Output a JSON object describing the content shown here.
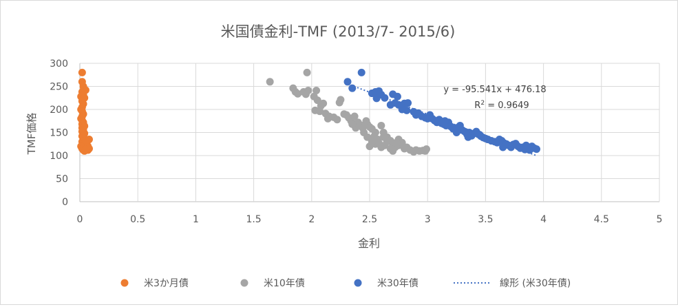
{
  "chart_data": {
    "type": "scatter",
    "title": "米国債金利-TMF (2013/7- 2015/6)",
    "xlabel": "金利",
    "ylabel": "TMF価格",
    "xlim": [
      0,
      5
    ],
    "ylim": [
      0,
      300
    ],
    "x_ticks": [
      "0",
      "0.5",
      "1",
      "1.5",
      "2",
      "2.5",
      "3",
      "3.5",
      "4",
      "4.5",
      "5"
    ],
    "y_ticks": [
      "0",
      "50",
      "100",
      "150",
      "200",
      "250",
      "300"
    ],
    "grid": true,
    "legend_position": "bottom",
    "series": [
      {
        "name": "米3か月債",
        "color": "#ED7D31",
        "points": [
          [
            0.02,
            280
          ],
          [
            0.02,
            260
          ],
          [
            0.03,
            250
          ],
          [
            0.05,
            242
          ],
          [
            0.02,
            238
          ],
          [
            0.03,
            232
          ],
          [
            0.01,
            228
          ],
          [
            0.04,
            225
          ],
          [
            0.02,
            218
          ],
          [
            0.03,
            212
          ],
          [
            0.02,
            205
          ],
          [
            0.01,
            200
          ],
          [
            0.02,
            196
          ],
          [
            0.03,
            190
          ],
          [
            0.02,
            185
          ],
          [
            0.01,
            180
          ],
          [
            0.02,
            176
          ],
          [
            0.03,
            172
          ],
          [
            0.02,
            168
          ],
          [
            0.04,
            164
          ],
          [
            0.02,
            160
          ],
          [
            0.03,
            156
          ],
          [
            0.02,
            152
          ],
          [
            0.04,
            148
          ],
          [
            0.03,
            145
          ],
          [
            0.02,
            142
          ],
          [
            0.03,
            138
          ],
          [
            0.05,
            135
          ],
          [
            0.04,
            132
          ],
          [
            0.02,
            130
          ],
          [
            0.06,
            128
          ],
          [
            0.03,
            125
          ],
          [
            0.05,
            122
          ],
          [
            0.02,
            120
          ],
          [
            0.04,
            118
          ],
          [
            0.06,
            116
          ],
          [
            0.03,
            114
          ],
          [
            0.07,
            112
          ],
          [
            0.04,
            110
          ],
          [
            0.08,
            115
          ],
          [
            0.07,
            120
          ],
          [
            0.08,
            135
          ],
          [
            0.05,
            127
          ],
          [
            0.06,
            118
          ],
          [
            0.01,
            120
          ],
          [
            0.02,
            115
          ],
          [
            0.03,
            112
          ],
          [
            0.05,
            113
          ]
        ]
      },
      {
        "name": "米10年債",
        "color": "#A5A5A5",
        "points": [
          [
            1.64,
            260
          ],
          [
            1.96,
            280
          ],
          [
            1.84,
            246
          ],
          [
            1.86,
            238
          ],
          [
            1.88,
            234
          ],
          [
            1.93,
            238
          ],
          [
            1.97,
            241
          ],
          [
            1.95,
            233
          ],
          [
            2.04,
            241
          ],
          [
            2.02,
            228
          ],
          [
            2.05,
            220
          ],
          [
            2.08,
            208
          ],
          [
            2.1,
            213
          ],
          [
            2.03,
            198
          ],
          [
            2.07,
            196
          ],
          [
            2.12,
            191
          ],
          [
            2.15,
            185
          ],
          [
            2.14,
            180
          ],
          [
            2.19,
            183
          ],
          [
            2.25,
            221
          ],
          [
            2.24,
            215
          ],
          [
            2.22,
            178
          ],
          [
            2.28,
            190
          ],
          [
            2.3,
            188
          ],
          [
            2.32,
            182
          ],
          [
            2.34,
            175
          ],
          [
            2.37,
            185
          ],
          [
            2.4,
            172
          ],
          [
            2.42,
            166
          ],
          [
            2.44,
            160
          ],
          [
            2.47,
            175
          ],
          [
            2.48,
            168
          ],
          [
            2.5,
            162
          ],
          [
            2.52,
            158
          ],
          [
            2.55,
            150
          ],
          [
            2.54,
            142
          ],
          [
            2.57,
            135
          ],
          [
            2.6,
            165
          ],
          [
            2.62,
            150
          ],
          [
            2.65,
            140
          ],
          [
            2.68,
            132
          ],
          [
            2.7,
            125
          ],
          [
            2.72,
            118
          ],
          [
            2.75,
            122
          ],
          [
            2.78,
            128
          ],
          [
            2.82,
            118
          ],
          [
            2.85,
            112
          ],
          [
            2.88,
            108
          ],
          [
            2.9,
            112
          ],
          [
            2.93,
            110
          ],
          [
            2.96,
            111
          ],
          [
            2.99,
            114
          ],
          [
            2.98,
            110
          ],
          [
            2.5,
            120
          ],
          [
            2.55,
            125
          ],
          [
            2.6,
            118
          ],
          [
            2.65,
            130
          ],
          [
            2.7,
            110
          ],
          [
            2.75,
            135
          ],
          [
            2.8,
            115
          ],
          [
            2.58,
            127
          ],
          [
            2.63,
            122
          ],
          [
            2.68,
            115
          ],
          [
            2.73,
            128
          ],
          [
            2.45,
            150
          ],
          [
            2.38,
            160
          ],
          [
            2.35,
            168
          ],
          [
            2.52,
            130
          ],
          [
            2.48,
            140
          ],
          [
            2.62,
            140
          ]
        ]
      },
      {
        "name": "米30年債",
        "color": "#4472C4",
        "points": [
          [
            2.43,
            280
          ],
          [
            2.31,
            260
          ],
          [
            2.35,
            246
          ],
          [
            2.52,
            235
          ],
          [
            2.55,
            238
          ],
          [
            2.58,
            240
          ],
          [
            2.6,
            232
          ],
          [
            2.63,
            225
          ],
          [
            2.56,
            224
          ],
          [
            2.7,
            233
          ],
          [
            2.74,
            228
          ],
          [
            2.72,
            214
          ],
          [
            2.68,
            210
          ],
          [
            2.75,
            210
          ],
          [
            2.8,
            213
          ],
          [
            2.83,
            214
          ],
          [
            2.78,
            200
          ],
          [
            2.82,
            198
          ],
          [
            2.88,
            195
          ],
          [
            2.9,
            188
          ],
          [
            2.92,
            192
          ],
          [
            2.95,
            185
          ],
          [
            2.98,
            182
          ],
          [
            3.02,
            188
          ],
          [
            3.04,
            180
          ],
          [
            3.06,
            176
          ],
          [
            3.08,
            172
          ],
          [
            3.1,
            178
          ],
          [
            3.12,
            170
          ],
          [
            3.14,
            168
          ],
          [
            3.16,
            165
          ],
          [
            3.18,
            172
          ],
          [
            3.2,
            163
          ],
          [
            3.22,
            158
          ],
          [
            3.25,
            160
          ],
          [
            3.28,
            165
          ],
          [
            3.3,
            155
          ],
          [
            3.32,
            152
          ],
          [
            3.34,
            146
          ],
          [
            3.36,
            150
          ],
          [
            3.38,
            143
          ],
          [
            3.4,
            148
          ],
          [
            3.42,
            152
          ],
          [
            3.44,
            146
          ],
          [
            3.46,
            142
          ],
          [
            3.48,
            139
          ],
          [
            3.5,
            137
          ],
          [
            3.52,
            135
          ],
          [
            3.55,
            132
          ],
          [
            3.58,
            130
          ],
          [
            3.6,
            128
          ],
          [
            3.62,
            135
          ],
          [
            3.64,
            132
          ],
          [
            3.66,
            127
          ],
          [
            3.68,
            125
          ],
          [
            3.7,
            122
          ],
          [
            3.72,
            118
          ],
          [
            3.74,
            124
          ],
          [
            3.76,
            126
          ],
          [
            3.78,
            120
          ],
          [
            3.8,
            116
          ],
          [
            3.82,
            118
          ],
          [
            3.84,
            113
          ],
          [
            3.86,
            115
          ],
          [
            3.88,
            112
          ],
          [
            3.9,
            120
          ],
          [
            3.92,
            116
          ],
          [
            3.94,
            114
          ],
          [
            3.15,
            175
          ],
          [
            3.25,
            150
          ],
          [
            3.45,
            145
          ],
          [
            3.65,
            118
          ],
          [
            3.85,
            122
          ],
          [
            3.0,
            180
          ],
          [
            3.35,
            140
          ]
        ]
      }
    ],
    "trendline": {
      "name": "線形 (米30年債)",
      "series": "米30年債",
      "color": "#4472C4",
      "slope": -95.541,
      "intercept": 476.18,
      "x_range": [
        2.31,
        3.94
      ],
      "equation": "y = -95.541x + 476.18",
      "r2_prefix": "R",
      "r2_sup": "2",
      "r2_suffix": " = 0.9649"
    }
  }
}
